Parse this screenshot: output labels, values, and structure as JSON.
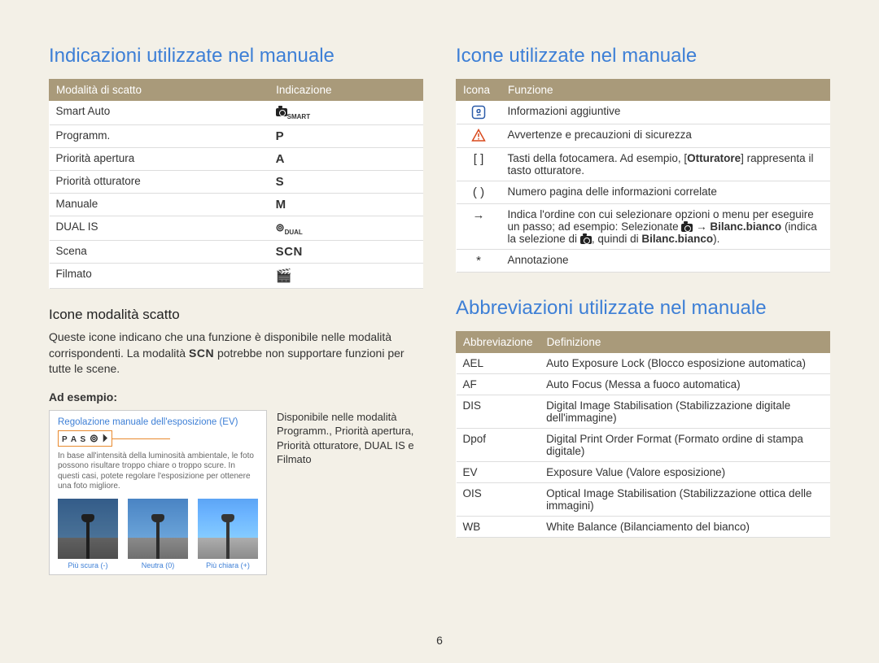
{
  "page_number": "6",
  "left": {
    "title": "Indicazioni utilizzate nel manuale",
    "table": {
      "headers": [
        "Modalità di scatto",
        "Indicazione"
      ],
      "col_widths": [
        "60%",
        "40%"
      ],
      "rows": [
        {
          "mode": "Smart Auto",
          "ind_type": "smart"
        },
        {
          "mode": "Programm.",
          "ind_text": "P"
        },
        {
          "mode": "Priorità apertura",
          "ind_text": "A"
        },
        {
          "mode": "Priorità otturatore",
          "ind_text": "S"
        },
        {
          "mode": "Manuale",
          "ind_text": "M"
        },
        {
          "mode": "DUAL IS",
          "ind_type": "dual"
        },
        {
          "mode": "Scena",
          "ind_text": "SCN",
          "ind_class": "scn"
        },
        {
          "mode": "Filmato",
          "ind_type": "film"
        }
      ]
    },
    "sub_title": "Icone modalità scatto",
    "sub_text_pre": "Queste icone indicano che una funzione è disponibile nelle modalità corrispondenti. La modalità ",
    "sub_text_scn": "SCN",
    "sub_text_post": " potrebbe non supportare funzioni per tutte le scene.",
    "ad_esempio_label": "Ad esempio:",
    "example": {
      "title": "Regolazione manuale dell'esposizione (EV)",
      "mode_strip": "P A S",
      "desc": "In base all'intensità della luminosità ambientale, le foto possono risultare troppo chiare o troppo scure. In questi casi, potete regolare l'esposizione per ottenere una foto migliore.",
      "thumbs": [
        {
          "caption": "Più scura (-)"
        },
        {
          "caption": "Neutra (0)"
        },
        {
          "caption": "Più chiara (+)"
        }
      ]
    },
    "example_caption": "Disponibile nelle modalità Programm., Priorità apertura, Priorità otturatore, DUAL IS e Filmato"
  },
  "right": {
    "icons_title": "Icone utilizzate nel manuale",
    "icons_table": {
      "headers": [
        "Icona",
        "Funzione"
      ],
      "rows": [
        {
          "icon_type": "info",
          "func": "Informazioni aggiuntive"
        },
        {
          "icon_type": "warn",
          "func": "Avvertenze e precauzioni di sicurezza"
        },
        {
          "icon_text": "[  ]",
          "func_html": "Tasti della fotocamera. Ad esempio, [<b>Otturatore</b>] rappresenta il tasto otturatore."
        },
        {
          "icon_text": "(  )",
          "func": "Numero pagina delle informazioni correlate"
        },
        {
          "icon_text": "→",
          "func_html": "Indica l'ordine con cui selezionare opzioni o menu per eseguire un passo; ad esempio: Selezionate <span class='camera-glyph'></span> → <b>Bilanc.bianco</b> (indica la selezione di <span class='camera-glyph'></span>, quindi di <b>Bilanc.bianco</b>)."
        },
        {
          "icon_text": "*",
          "func": "Annotazione"
        }
      ]
    },
    "abbr_title": "Abbreviazioni utilizzate nel manuale",
    "abbr_table": {
      "headers": [
        "Abbreviazione",
        "Definizione"
      ],
      "rows": [
        {
          "abbr": "AEL",
          "def": "Auto Exposure Lock (Blocco esposizione automatica)"
        },
        {
          "abbr": "AF",
          "def": "Auto Focus (Messa a fuoco automatica)"
        },
        {
          "abbr": "DIS",
          "def": "Digital Image Stabilisation (Stabilizzazione digitale dell'immagine)"
        },
        {
          "abbr": "Dpof",
          "def": "Digital Print Order Format (Formato ordine di stampa digitale)"
        },
        {
          "abbr": "EV",
          "def": "Exposure Value (Valore esposizione)"
        },
        {
          "abbr": "OIS",
          "def": "Optical Image Stabilisation (Stabilizzazione ottica delle immagini)"
        },
        {
          "abbr": "WB",
          "def": "White Balance (Bilanciamento del bianco)"
        }
      ]
    }
  },
  "colors": {
    "heading": "#3d7fd6",
    "table_header_bg": "#a99a7a",
    "page_bg": "#f3f0e7",
    "highlight_border": "#e98a2f"
  }
}
